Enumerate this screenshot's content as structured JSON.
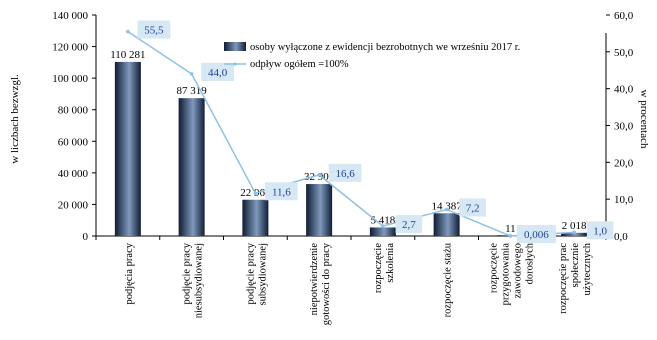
{
  "chart_data": {
    "type": "bar",
    "categories": [
      "podjęcia pracy",
      "podjęcie pracy niesubsydiowanej",
      "podjęcie pracy subsydiowanej",
      "niepotwierdzenie gotowości do pracy",
      "rozpoczęcie szkolenia",
      "rozpoczęcie stażu",
      "rozpoczęcie przygotowania zawodowego dorosłych",
      "rozpoczęcie prac społecznie użytecznych"
    ],
    "category_lines": [
      [
        "podjęcia  pracy"
      ],
      [
        "podjęcie pracy",
        "niesubsydiowanej"
      ],
      [
        "podjęcie pracy",
        "subsydiowanej"
      ],
      [
        "niepotwierdzenie",
        "gotowości do pracy"
      ],
      [
        "rozpoczęcie",
        "szkolenia"
      ],
      [
        "rozpoczęcie stażu"
      ],
      [
        "rozpoczęcie",
        "przygotowania",
        "zawodowego",
        "dorosłych"
      ],
      [
        "rozpoczęcie prac",
        "społecznie",
        "użytecznych"
      ]
    ],
    "series": [
      {
        "name": "osoby wyłączone z ewidencji bezrobotnych we wrześniu 2017 r.",
        "type": "bar",
        "axis": "left",
        "values": [
          110281,
          87319,
          22962,
          32900,
          5418,
          14387,
          11,
          2018
        ],
        "labels": [
          "110 281",
          "87 319",
          "22 962",
          "32 900",
          "5 418",
          "14 387",
          "11",
          "2 018"
        ]
      },
      {
        "name": "odpływ ogółem =100%",
        "type": "line",
        "axis": "right",
        "values": [
          55.5,
          44.0,
          11.6,
          16.6,
          2.7,
          7.2,
          0.006,
          1.0
        ],
        "labels": [
          "55,5",
          "44,0",
          "11,6",
          "16,6",
          "2,7",
          "7,2",
          "0,006",
          "1,0"
        ]
      }
    ],
    "y_left": {
      "label": "w liczbach bezwzgl.",
      "min": 0,
      "max": 140000,
      "ticks": [
        0,
        20000,
        40000,
        60000,
        80000,
        100000,
        120000,
        140000
      ],
      "tick_labels": [
        "0",
        "20 000",
        "40 000",
        "60 000",
        "80 000",
        "100 000",
        "120 000",
        "140 000"
      ]
    },
    "y_right": {
      "label": "w procentach",
      "min": 0,
      "max": 60,
      "ticks": [
        0,
        10,
        20,
        30,
        40,
        50,
        60
      ],
      "tick_labels": [
        "0,0",
        "10,0",
        "20,0",
        "30,0",
        "40,0",
        "50,0",
        "60,0"
      ]
    },
    "legend_position": "top-right",
    "grid": false,
    "colors": {
      "bar_dark": "#0f1c33",
      "bar_light": "#7f99bd",
      "line": "#8fc1e6",
      "pct_box": "#d6e8f4",
      "pct_text": "#1f3fa0"
    }
  }
}
